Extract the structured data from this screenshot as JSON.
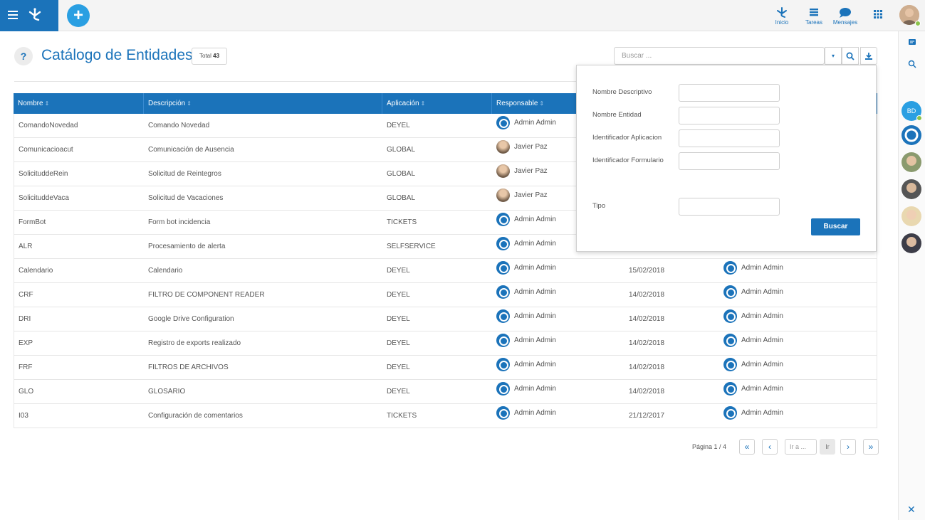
{
  "topbar": {
    "add_icon": "plus-icon",
    "nav": [
      {
        "label": "Inicio",
        "icon": "deyel-logo-icon"
      },
      {
        "label": "Tareas",
        "icon": "tasks-icon"
      },
      {
        "label": "Mensajes",
        "icon": "chat-icon"
      }
    ],
    "apps_icon": "grid-icon"
  },
  "page": {
    "help_label": "?",
    "title": "Catálogo de Entidades",
    "total_label": "Total",
    "total_count": "43"
  },
  "search": {
    "placeholder": "Buscar ..."
  },
  "table": {
    "columns": [
      "Nombre",
      "Descripción",
      "Aplicación",
      "Responsable"
    ],
    "rows": [
      {
        "nombre": "ComandoNovedad",
        "descripcion": "Comando Novedad",
        "aplicacion": "DEYEL",
        "responsable": "Admin Admin",
        "resp_type": "admin",
        "fecha": "",
        "modificado": ""
      },
      {
        "nombre": "Comunicacioacut",
        "descripcion": "Comunicación de Ausencia",
        "aplicacion": "GLOBAL",
        "responsable": "Javier Paz",
        "resp_type": "photo",
        "fecha": "",
        "modificado": ""
      },
      {
        "nombre": "SolicituddeRein",
        "descripcion": "Solicitud de Reintegros",
        "aplicacion": "GLOBAL",
        "responsable": "Javier Paz",
        "resp_type": "photo",
        "fecha": "",
        "modificado": ""
      },
      {
        "nombre": "SolicituddeVaca",
        "descripcion": "Solicitud de Vacaciones",
        "aplicacion": "GLOBAL",
        "responsable": "Javier Paz",
        "resp_type": "photo",
        "fecha": "",
        "modificado": ""
      },
      {
        "nombre": "FormBot",
        "descripcion": "Form bot incidencia",
        "aplicacion": "TICKETS",
        "responsable": "Admin Admin",
        "resp_type": "admin",
        "fecha": "",
        "modificado": ""
      },
      {
        "nombre": "ALR",
        "descripcion": "Procesamiento de alerta",
        "aplicacion": "SELFSERVICE",
        "responsable": "Admin Admin",
        "resp_type": "admin",
        "fecha": "",
        "modificado": ""
      },
      {
        "nombre": "Calendario",
        "descripcion": "Calendario",
        "aplicacion": "DEYEL",
        "responsable": "Admin Admin",
        "resp_type": "admin",
        "fecha": "15/02/2018",
        "modificado": "Admin Admin"
      },
      {
        "nombre": "CRF",
        "descripcion": "FILTRO DE COMPONENT READER",
        "aplicacion": "DEYEL",
        "responsable": "Admin Admin",
        "resp_type": "admin",
        "fecha": "14/02/2018",
        "modificado": "Admin Admin"
      },
      {
        "nombre": "DRI",
        "descripcion": "Google Drive Configuration",
        "aplicacion": "DEYEL",
        "responsable": "Admin Admin",
        "resp_type": "admin",
        "fecha": "14/02/2018",
        "modificado": "Admin Admin"
      },
      {
        "nombre": "EXP",
        "descripcion": "Registro de exports realizado",
        "aplicacion": "DEYEL",
        "responsable": "Admin Admin",
        "resp_type": "admin",
        "fecha": "14/02/2018",
        "modificado": "Admin Admin"
      },
      {
        "nombre": "FRF",
        "descripcion": "FILTROS DE ARCHIVOS",
        "aplicacion": "DEYEL",
        "responsable": "Admin Admin",
        "resp_type": "admin",
        "fecha": "14/02/2018",
        "modificado": "Admin Admin"
      },
      {
        "nombre": "GLO",
        "descripcion": "GLOSARIO",
        "aplicacion": "DEYEL",
        "responsable": "Admin Admin",
        "resp_type": "admin",
        "fecha": "14/02/2018",
        "modificado": "Admin Admin"
      },
      {
        "nombre": "I03",
        "descripcion": "Configuración de comentarios",
        "aplicacion": "TICKETS",
        "responsable": "Admin Admin",
        "resp_type": "admin",
        "fecha": "21/12/2017",
        "modificado": "Admin Admin"
      }
    ]
  },
  "filter": {
    "fields": [
      "Nombre Descriptivo",
      "Nombre Entidad",
      "Identificador Aplicacion",
      "Identificador Formulario",
      "Tipo"
    ],
    "button": "Buscar"
  },
  "pagination": {
    "info": "Página 1 / 4",
    "goto_placeholder": "Ir a ...",
    "go_label": "Ir"
  },
  "sidebar": {
    "bd_initials": "BD"
  },
  "colors": {
    "primary": "#1b73ba",
    "accent": "#2a9fe2",
    "online": "#8bc34a"
  }
}
